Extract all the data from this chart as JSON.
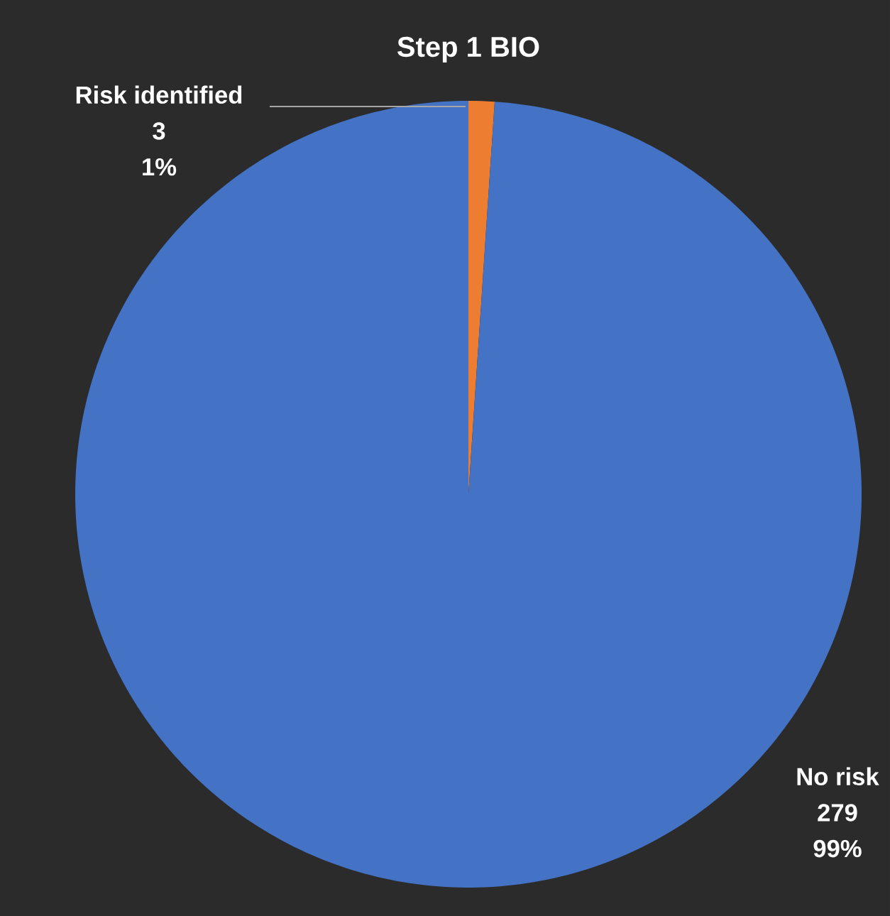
{
  "chart_data": {
    "type": "pie",
    "title": "Step 1 BIO",
    "categories": [
      "Risk identified",
      "No risk"
    ],
    "values": [
      3,
      279
    ],
    "annotations": [
      "1%",
      "99%"
    ],
    "colors": [
      "#ed7d31",
      "#4472c4"
    ],
    "data_labels": true,
    "legend": false
  }
}
